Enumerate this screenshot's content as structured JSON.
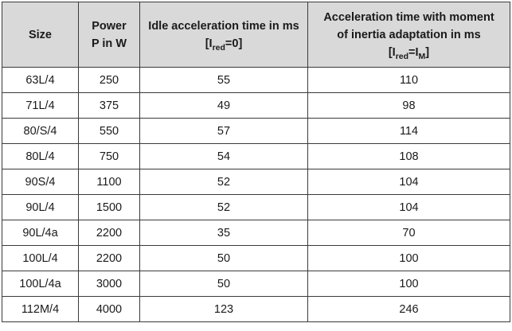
{
  "table": {
    "headers": {
      "size": "Size",
      "power": {
        "line1": "Power",
        "line2": "P in W"
      },
      "idle": {
        "line1": "Idle acceleration time in ms",
        "bracket_open": "[I",
        "sub": "red",
        "bracket_close": "=0]"
      },
      "adapted": {
        "line1": "Acceleration time with moment",
        "line2": "of inertia adaptation in ms",
        "bracket_open": "[I",
        "sub1": "red",
        "eq": "=I",
        "sub2": "M",
        "bracket_close": "]"
      }
    },
    "rows": [
      {
        "size": "63L/4",
        "power": "250",
        "idle": "55",
        "adapted": "110"
      },
      {
        "size": "71L/4",
        "power": "375",
        "idle": "49",
        "adapted": "98"
      },
      {
        "size": "80/S/4",
        "power": "550",
        "idle": "57",
        "adapted": "114"
      },
      {
        "size": "80L/4",
        "power": "750",
        "idle": "54",
        "adapted": "108"
      },
      {
        "size": "90S/4",
        "power": "1100",
        "idle": "52",
        "adapted": "104"
      },
      {
        "size": "90L/4",
        "power": "1500",
        "idle": "52",
        "adapted": "104"
      },
      {
        "size": "90L/4a",
        "power": "2200",
        "idle": "35",
        "adapted": "70"
      },
      {
        "size": "100L/4",
        "power": "2200",
        "idle": "50",
        "adapted": "100"
      },
      {
        "size": "100L/4a",
        "power": "3000",
        "idle": "50",
        "adapted": "100"
      },
      {
        "size": "112M/4",
        "power": "4000",
        "idle": "123",
        "adapted": "246"
      }
    ]
  }
}
